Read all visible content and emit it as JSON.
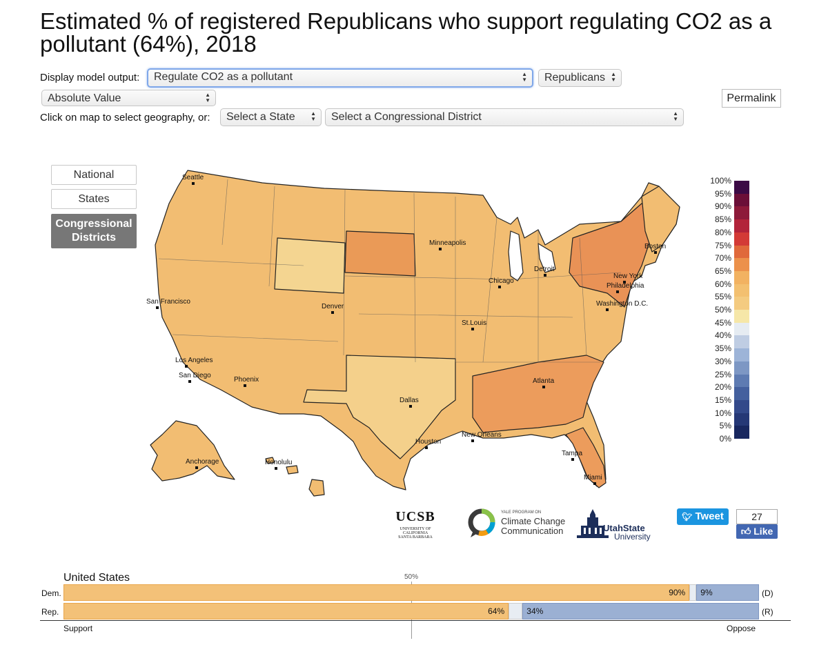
{
  "title": "Estimated % of registered Republicans who support regulating CO2 as a pollutant (64%), 2018",
  "controls": {
    "display_label": "Display model output:",
    "model_select": "Regulate CO2 as a pollutant",
    "group_select": "Republicans",
    "value_select": "Absolute Value",
    "permalink": "Permalink",
    "geo_label": "Click on map to select geography, or:",
    "state_select": "Select a State",
    "district_select": "Select a Congressional District"
  },
  "geo_buttons": [
    {
      "label": "National",
      "active": false
    },
    {
      "label": "States",
      "active": false
    },
    {
      "label": "Congressional Districts",
      "active": true
    }
  ],
  "map": {
    "cities": [
      "Seattle",
      "San Francisco",
      "Los Angeles",
      "San Diego",
      "Phoenix",
      "Denver",
      "Minneapolis",
      "Chicago",
      "Detroit",
      "St.Louis",
      "Dallas",
      "Houston",
      "New Orleans",
      "Atlanta",
      "Tampa",
      "Miami",
      "Boston",
      "New York",
      "Philadelphia",
      "Washington D.C.",
      "Anchorage",
      "Honolulu"
    ]
  },
  "legend": {
    "ticks": [
      "100%",
      "95%",
      "90%",
      "85%",
      "80%",
      "75%",
      "70%",
      "65%",
      "60%",
      "55%",
      "50%",
      "45%",
      "40%",
      "35%",
      "30%",
      "25%",
      "20%",
      "15%",
      "10%",
      "5%",
      "0%"
    ],
    "colors": [
      "#3b0a45",
      "#6b0f38",
      "#8d1a3a",
      "#b2233a",
      "#d33a36",
      "#e0693b",
      "#ec914b",
      "#f2b261",
      "#f3c070",
      "#f4cb80",
      "#f6e7a8",
      "#e6ecf2",
      "#bfcde3",
      "#9db4d8",
      "#7d97c4",
      "#5e7bb2",
      "#44609e",
      "#33498a",
      "#253876",
      "#18275f",
      "#0f1a49"
    ]
  },
  "logos": {
    "ucsb": "UCSB",
    "ucsb_sub1": "UNIVERSITY OF CALIFORNIA",
    "ucsb_sub2": "SANTA BARBARA",
    "yale_small": "YALE PROGRAM ON",
    "yale_line1": "Climate Change",
    "yale_line2": "Communication",
    "usu_line1": "UtahState",
    "usu_line2": "University"
  },
  "social": {
    "tweet": "Tweet",
    "like_count": "27",
    "like": "Like"
  },
  "comparison": {
    "region": "United States",
    "midpoint_label": "50%",
    "support_label": "Support",
    "oppose_label": "Oppose",
    "rows": [
      {
        "name": "Dem.",
        "support": 90,
        "oppose": 9,
        "support_label": "90%",
        "oppose_label": "9%",
        "party": "(D)"
      },
      {
        "name": "Rep.",
        "support": 64,
        "oppose": 34,
        "support_label": "64%",
        "oppose_label": "34%",
        "party": "(R)"
      }
    ],
    "colors": {
      "support": "#f3c178",
      "oppose": "#9bb0d3",
      "neutral": "#e8edf3"
    }
  }
}
